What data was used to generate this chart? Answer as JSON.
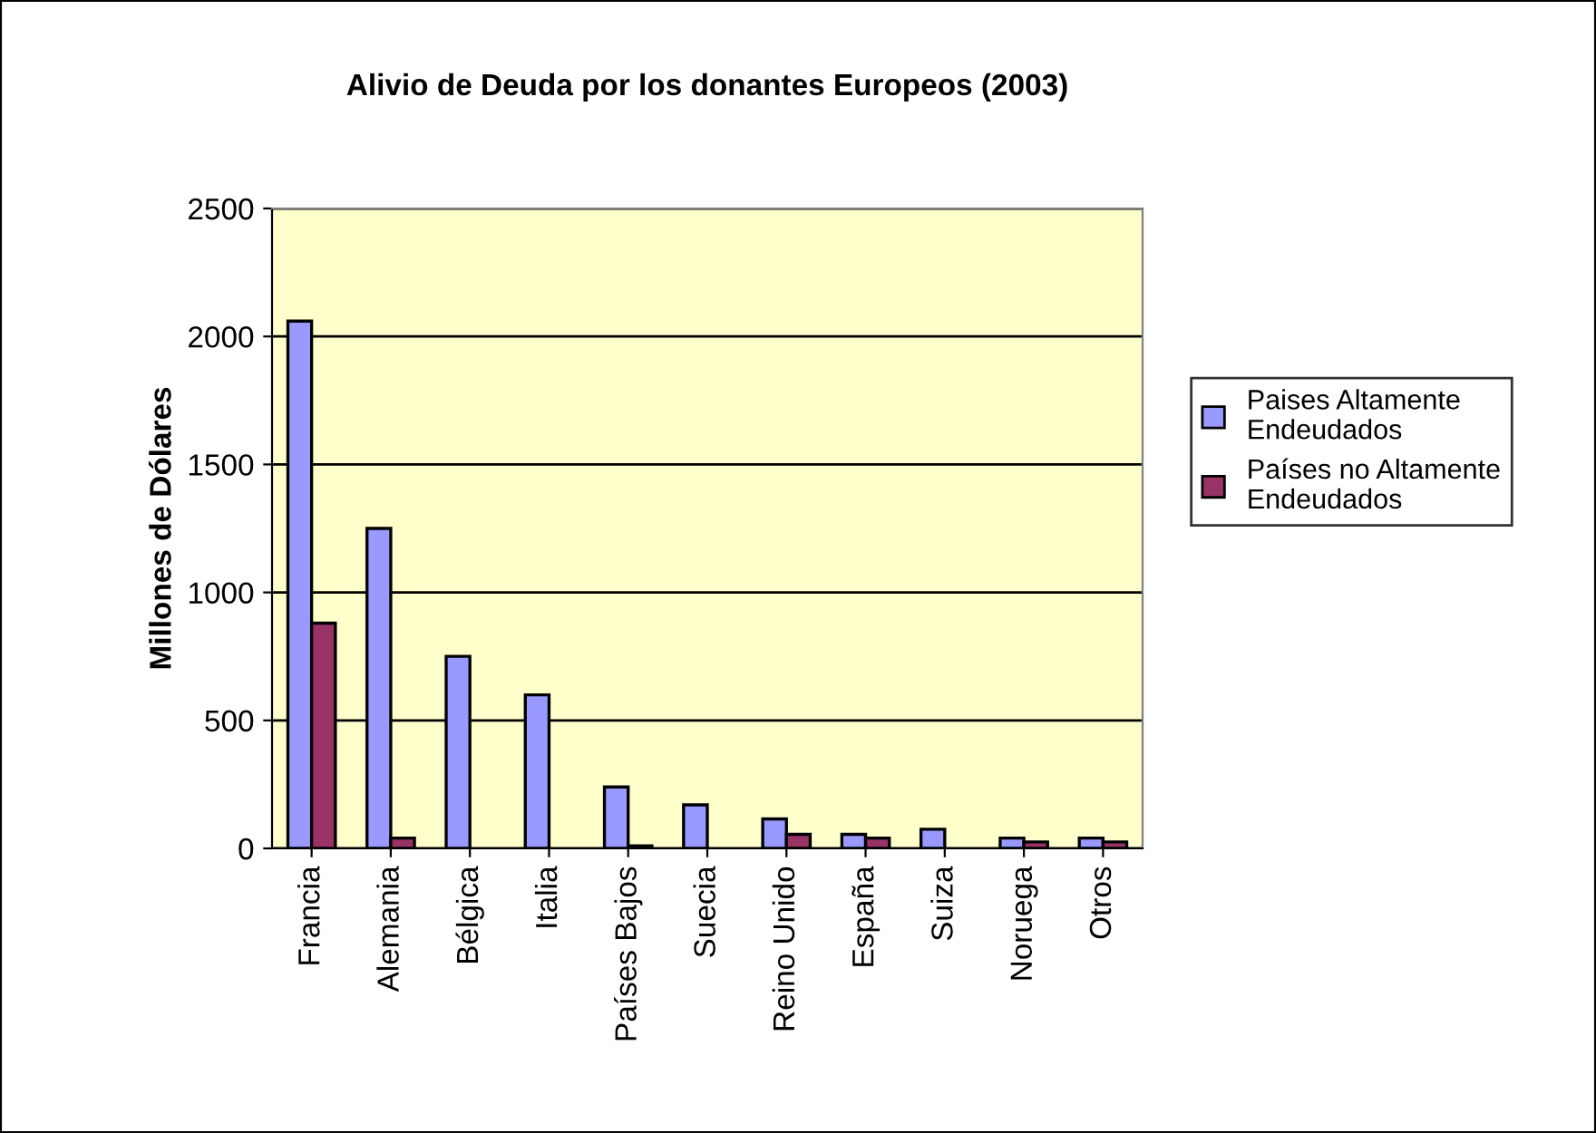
{
  "chart_data": {
    "type": "bar",
    "title": "Alivio de Deuda por los donantes Europeos (2003)",
    "ylabel": "Millones de Dólares",
    "categories": [
      "Francia",
      "Alemania",
      "Bélgica",
      "Italia",
      "Países Bajos",
      "Suecia",
      "Reino Unido",
      "España",
      "Suiza",
      "Noruega",
      "Otros"
    ],
    "series": [
      {
        "name": "Paises Altamente Endeudados",
        "color": "#9999ff",
        "values": [
          2060,
          1250,
          750,
          600,
          240,
          170,
          115,
          55,
          75,
          40,
          40
        ]
      },
      {
        "name": "Países no Altamente Endeudados",
        "color": "#993366",
        "values": [
          880,
          40,
          null,
          null,
          10,
          null,
          55,
          40,
          null,
          25,
          25
        ]
      }
    ],
    "ylim": [
      0,
      2500
    ],
    "yticks": [
      0,
      500,
      1000,
      1500,
      2000,
      2500
    ],
    "grid": "y",
    "legend": "right"
  }
}
